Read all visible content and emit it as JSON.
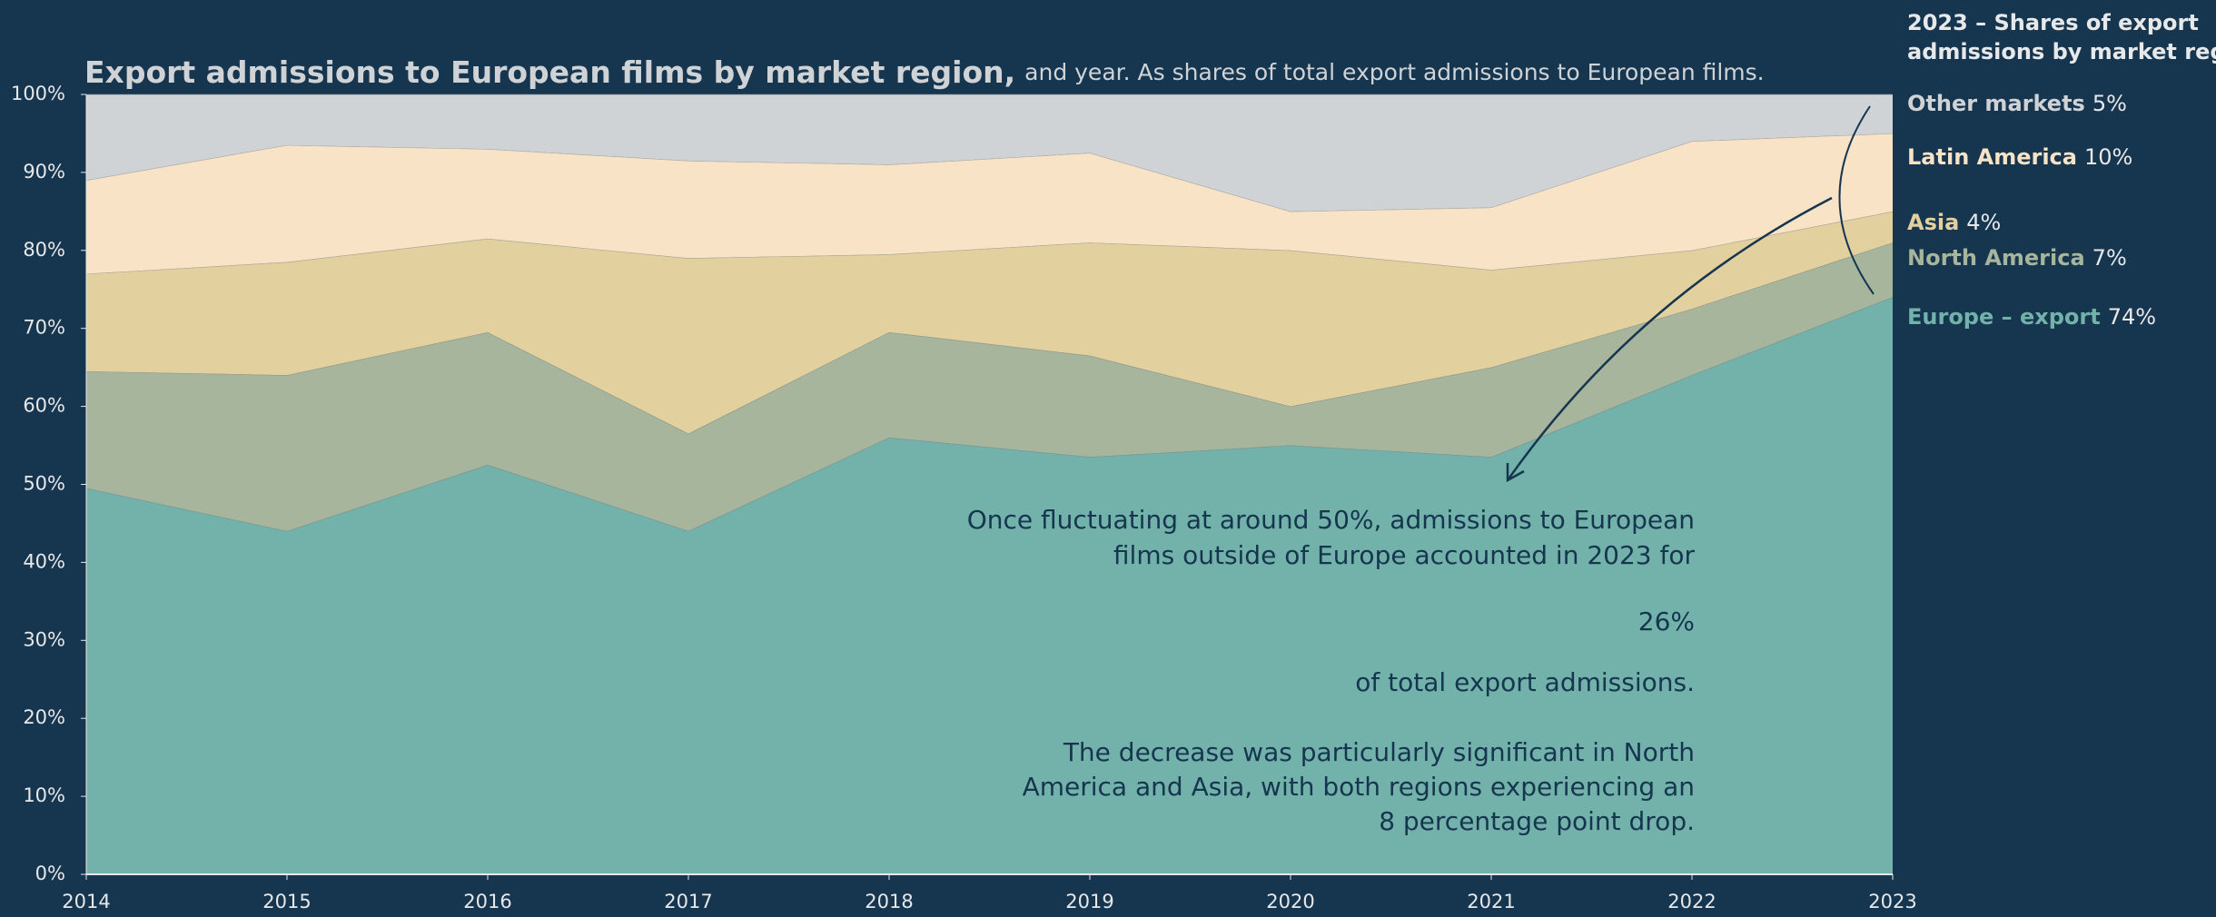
{
  "chart_data": {
    "type": "stacked-area",
    "title": "Export admissions to European films by market region,",
    "subtitle": "and year. As shares of total export admissions to European films.",
    "x": [
      2014,
      2015,
      2016,
      2017,
      2018,
      2019,
      2020,
      2021,
      2022,
      2023
    ],
    "xlim": [
      2014,
      2023
    ],
    "xticks": [
      2014,
      2015,
      2016,
      2017,
      2018,
      2019,
      2020,
      2021,
      2022,
      2023
    ],
    "ylim": [
      0,
      100
    ],
    "yticks": [
      {
        "value": 0,
        "label": "0%"
      },
      {
        "value": 10,
        "label": "10%"
      },
      {
        "value": 20,
        "label": "20%"
      },
      {
        "value": 30,
        "label": "30%"
      },
      {
        "value": 40,
        "label": "40%"
      },
      {
        "value": 50,
        "label": "50%"
      },
      {
        "value": 60,
        "label": "60%"
      },
      {
        "value": 70,
        "label": "70%"
      },
      {
        "value": 80,
        "label": "80%"
      },
      {
        "value": 90,
        "label": "90%"
      },
      {
        "value": 100,
        "label": "100%"
      }
    ],
    "legend_title": [
      "2023 – Shares of export",
      "admissions by market region:"
    ],
    "series": [
      {
        "name": "Europe – export",
        "color": "#72b2aa",
        "values": [
          49.5,
          44,
          52.5,
          44,
          56,
          53.5,
          55,
          53.5,
          64,
          74
        ],
        "value_labels": [
          null,
          null,
          null,
          null,
          null,
          null,
          null,
          null,
          null,
          "74%"
        ]
      },
      {
        "name": "North America",
        "color": "#a6b59b",
        "values": [
          15,
          20,
          17,
          12.5,
          13.5,
          13,
          5,
          11.5,
          8.5,
          7
        ],
        "value_labels": [
          null,
          null,
          null,
          null,
          null,
          null,
          null,
          null,
          null,
          "7%"
        ]
      },
      {
        "name": "Asia",
        "color": "#e2d19f",
        "values": [
          12.5,
          14.5,
          12,
          22.5,
          10,
          14.5,
          20,
          12.5,
          7.5,
          4
        ],
        "value_labels": [
          null,
          null,
          null,
          null,
          null,
          null,
          null,
          null,
          null,
          "4%"
        ]
      },
      {
        "name": "Latin America",
        "color": "#f8e3c6",
        "values": [
          12,
          15,
          11.5,
          12.5,
          11.5,
          11.5,
          5,
          8,
          14,
          10
        ],
        "value_labels": [
          null,
          null,
          null,
          null,
          null,
          null,
          null,
          null,
          null,
          "10%"
        ]
      },
      {
        "name": "Other markets",
        "color": "#d0d3d6",
        "values": [
          11,
          6.5,
          7,
          8.5,
          9,
          7.5,
          15,
          14.5,
          6,
          5
        ],
        "value_labels": [
          null,
          null,
          null,
          null,
          null,
          null,
          null,
          null,
          null,
          "5%"
        ]
      }
    ],
    "annotation": {
      "intro": [
        "Once fluctuating at around 50%, admissions to European",
        "films outside of Europe accounted in 2023 for"
      ],
      "highlight": "26%",
      "outro": "of total export admissions.",
      "note": [
        "The decrease was particularly significant in North",
        "America and Asia, with both regions experiencing an",
        "8 percentage point drop."
      ]
    }
  }
}
